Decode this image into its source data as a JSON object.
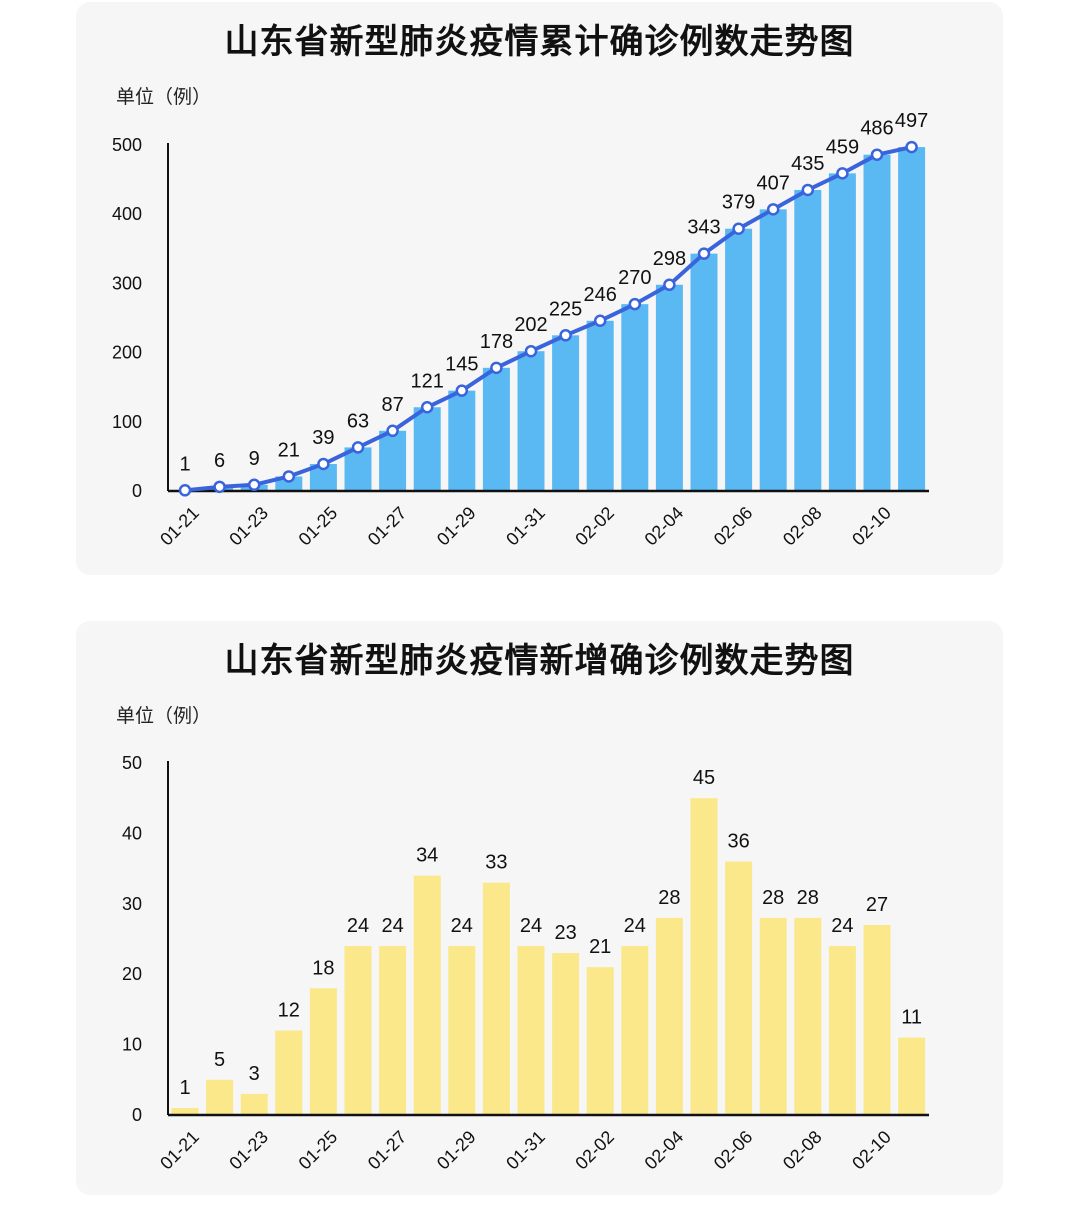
{
  "chart_data": [
    {
      "type": "bar",
      "title": "山东省新型肺炎疫情累计确诊例数走势图",
      "ylabel": "单位（例）",
      "x": [
        "01-21",
        "01-22",
        "01-23",
        "01-24",
        "01-25",
        "01-26",
        "01-27",
        "01-28",
        "01-29",
        "01-30",
        "01-31",
        "02-01",
        "02-02",
        "02-03",
        "02-04",
        "02-05",
        "02-06",
        "02-07",
        "02-08",
        "02-09",
        "02-10",
        "02-11"
      ],
      "x_tick_labels": [
        "01-21",
        "01-23",
        "01-25",
        "01-27",
        "01-29",
        "01-31",
        "02-02",
        "02-04",
        "02-06",
        "02-08",
        "02-10"
      ],
      "values": [
        1,
        6,
        9,
        21,
        39,
        63,
        87,
        121,
        145,
        178,
        202,
        225,
        246,
        270,
        298,
        343,
        379,
        407,
        435,
        459,
        486,
        497
      ],
      "ylim": [
        0,
        500
      ],
      "yticks": [
        0,
        100,
        200,
        300,
        400,
        500
      ],
      "overlay_line": true,
      "colors": {
        "bar": "#5ab9f2",
        "line": "#3a64dc",
        "marker_fill": "#ffffff"
      }
    },
    {
      "type": "bar",
      "title": "山东省新型肺炎疫情新增确诊例数走势图",
      "ylabel": "单位（例）",
      "x": [
        "01-21",
        "01-22",
        "01-23",
        "01-24",
        "01-25",
        "01-26",
        "01-27",
        "01-28",
        "01-29",
        "01-30",
        "01-31",
        "02-01",
        "02-02",
        "02-03",
        "02-04",
        "02-05",
        "02-06",
        "02-07",
        "02-08",
        "02-09",
        "02-10",
        "02-11"
      ],
      "x_tick_labels": [
        "01-21",
        "01-23",
        "01-25",
        "01-27",
        "01-29",
        "01-31",
        "02-02",
        "02-04",
        "02-06",
        "02-08",
        "02-10"
      ],
      "values": [
        1,
        5,
        3,
        12,
        18,
        24,
        24,
        34,
        24,
        33,
        24,
        23,
        21,
        24,
        28,
        45,
        36,
        28,
        28,
        24,
        27,
        11
      ],
      "ylim": [
        0,
        50
      ],
      "yticks": [
        0,
        10,
        20,
        30,
        40,
        50
      ],
      "overlay_line": false,
      "colors": {
        "bar": "#fbe88a"
      }
    }
  ]
}
